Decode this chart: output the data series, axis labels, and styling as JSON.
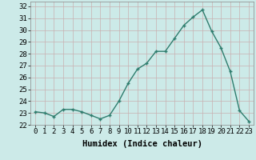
{
  "x": [
    0,
    1,
    2,
    3,
    4,
    5,
    6,
    7,
    8,
    9,
    10,
    11,
    12,
    13,
    14,
    15,
    16,
    17,
    18,
    19,
    20,
    21,
    22,
    23
  ],
  "y": [
    23.1,
    23.0,
    22.7,
    23.3,
    23.3,
    23.1,
    22.8,
    22.5,
    22.8,
    24.0,
    25.5,
    26.7,
    27.2,
    28.2,
    28.2,
    29.3,
    30.4,
    31.1,
    31.7,
    29.9,
    28.5,
    26.5,
    23.2,
    22.3
  ],
  "line_color": "#2e7d6e",
  "marker_color": "#2e7d6e",
  "bg_color": "#cceae8",
  "grid_color": "#c8b0b0",
  "title": "",
  "xlabel": "Humidex (Indice chaleur)",
  "ylabel": "",
  "xlim": [
    -0.5,
    23.5
  ],
  "ylim": [
    22,
    32.4
  ],
  "yticks": [
    22,
    23,
    24,
    25,
    26,
    27,
    28,
    29,
    30,
    31,
    32
  ],
  "xtick_labels": [
    "0",
    "1",
    "2",
    "3",
    "4",
    "5",
    "6",
    "7",
    "8",
    "9",
    "10",
    "11",
    "12",
    "13",
    "14",
    "15",
    "16",
    "17",
    "18",
    "19",
    "20",
    "21",
    "22",
    "23"
  ],
  "xlabel_fontsize": 7.5,
  "tick_fontsize": 6.5,
  "line_width": 1.0,
  "marker_size": 3.5
}
